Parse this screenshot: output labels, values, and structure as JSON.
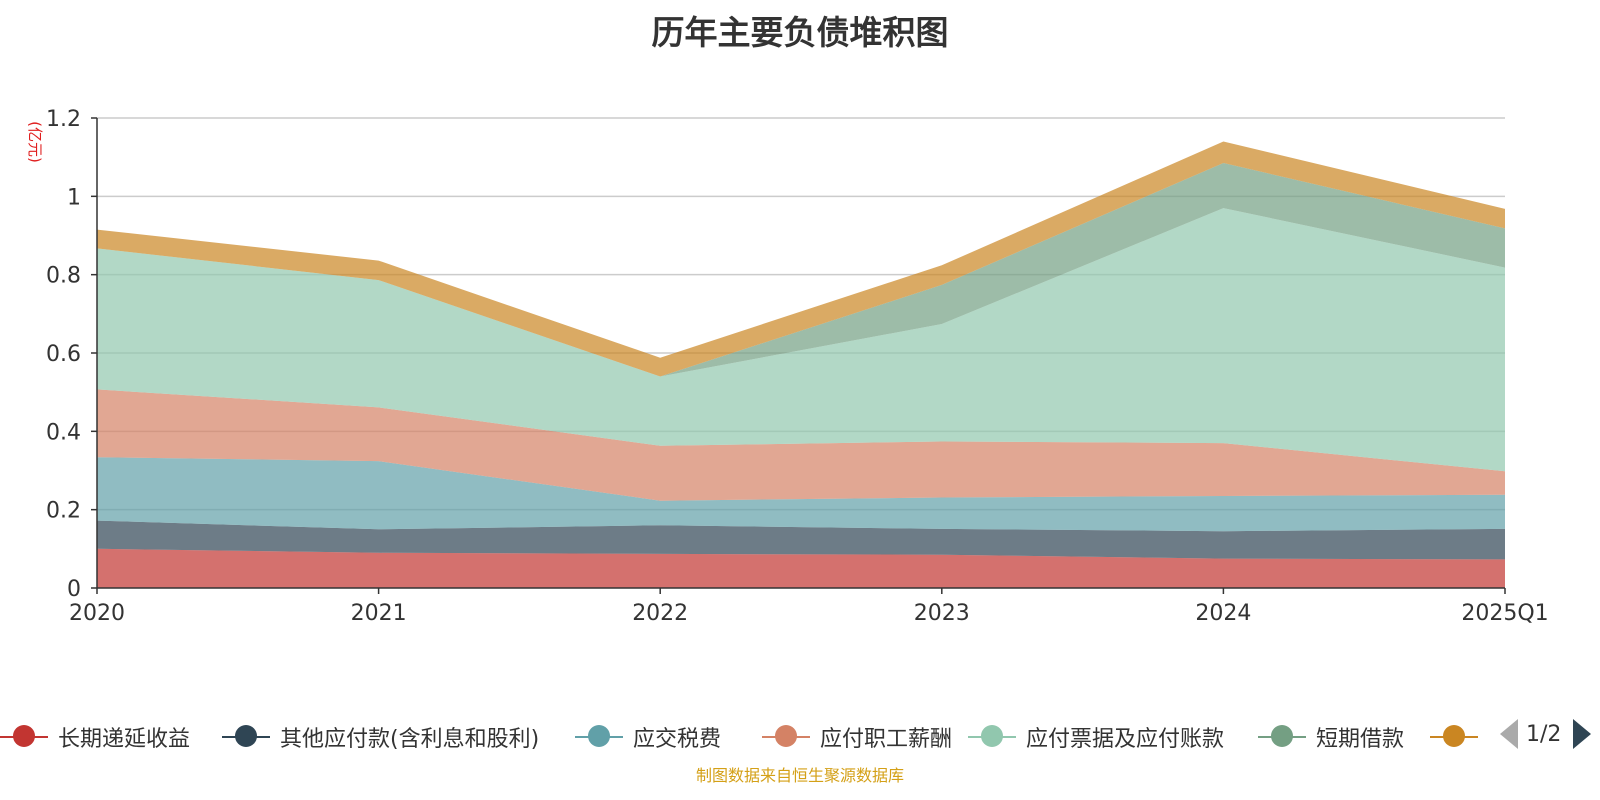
{
  "title": "历年主要负债堆积图",
  "source": "制图数据来自恒生聚源数据库",
  "pager": {
    "text": "1/2"
  },
  "chart_data": {
    "type": "area",
    "stacked": true,
    "unit": "(亿元)",
    "categories": [
      "2020",
      "2021",
      "2022",
      "2023",
      "2024",
      "2025Q1"
    ],
    "ylim": [
      0,
      1.2
    ],
    "yticks": [
      "0",
      "0.2",
      "0.4",
      "0.6",
      "0.8",
      "1",
      "1.2"
    ],
    "grid": true,
    "legend_position": "bottom",
    "series": [
      {
        "name": "长期递延收益",
        "color": "#c23531",
        "values": [
          0.1,
          0.09,
          0.087,
          0.085,
          0.075,
          0.073
        ]
      },
      {
        "name": "其他应付款(含利息和股利)",
        "color": "#2f4554",
        "values": [
          0.072,
          0.06,
          0.073,
          0.066,
          0.07,
          0.078
        ]
      },
      {
        "name": "应交税费",
        "color": "#61a0a8",
        "values": [
          0.162,
          0.174,
          0.063,
          0.08,
          0.09,
          0.087
        ]
      },
      {
        "name": "应付职工薪酬",
        "color": "#d48265",
        "values": [
          0.173,
          0.137,
          0.14,
          0.143,
          0.135,
          0.06
        ]
      },
      {
        "name": "应付票据及应付账款",
        "color": "#91c7ae",
        "values": [
          0.36,
          0.325,
          0.177,
          0.3,
          0.6,
          0.52
        ]
      },
      {
        "name": "短期借款",
        "color": "#749f83",
        "values": [
          0,
          0,
          0,
          0.1,
          0.115,
          0.1
        ]
      },
      {
        "name": "",
        "color": "#ca8622",
        "values": [
          0.048,
          0.05,
          0.048,
          0.05,
          0.055,
          0.05
        ]
      }
    ]
  }
}
